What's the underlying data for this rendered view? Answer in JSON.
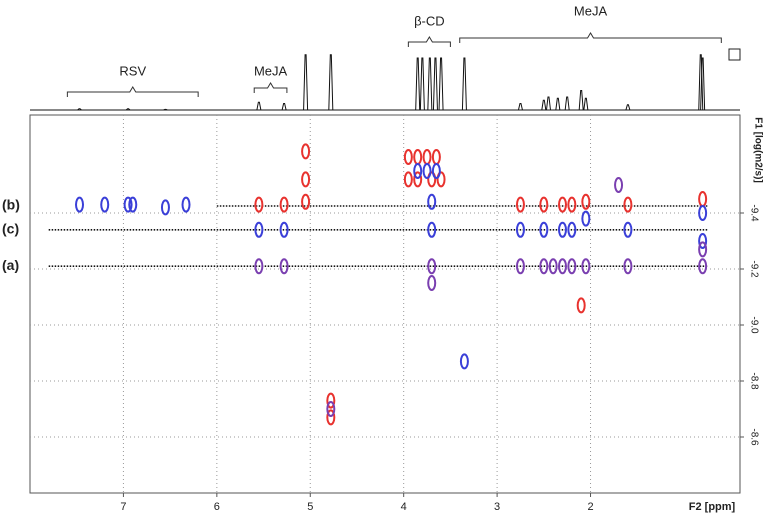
{
  "chart_data": {
    "type": "dosy",
    "xlabel": "F2 [ppm]",
    "ylabel": "F1 [log(m2/s)]",
    "xlim": [
      8.0,
      0.4
    ],
    "xticks": [
      7,
      6,
      5,
      4,
      3,
      2
    ],
    "ylim": [
      -9.75,
      -8.4
    ],
    "yticks": [
      {
        "value": -9.4,
        "label": "-9.4"
      },
      {
        "value": -9.2,
        "label": "-9.2"
      },
      {
        "value": -9,
        "label": "-9.0"
      },
      {
        "value": -8.8,
        "label": "-8.8"
      },
      {
        "value": -8.6,
        "label": "-8.6"
      }
    ],
    "grid": true,
    "spectrum": {
      "color": "#111111",
      "x": [
        7.47,
        6.95,
        6.55,
        5.55,
        5.28,
        5.05,
        4.78,
        3.85,
        3.8,
        3.72,
        3.66,
        3.6,
        3.35,
        2.75,
        2.5,
        2.45,
        2.35,
        2.25,
        2.1,
        2.05,
        1.6,
        0.82,
        0.8
      ],
      "values": [
        2,
        2,
        1,
        12,
        10,
        85,
        85,
        80,
        80,
        80,
        80,
        80,
        80,
        10,
        15,
        20,
        18,
        20,
        30,
        18,
        8,
        85,
        80
      ]
    },
    "regions": [
      {
        "label": "RSV",
        "from": 7.6,
        "to": 6.2
      },
      {
        "label": "MeJA",
        "from": 5.6,
        "to": 5.25
      },
      {
        "label": "β-CD",
        "from": 3.95,
        "to": 3.5
      },
      {
        "label": "MeJA",
        "from": 3.4,
        "to": 0.6
      }
    ],
    "reference_lines": [
      {
        "label": "(b)",
        "value": -9.425,
        "from": 6.0,
        "to": 0.75
      },
      {
        "label": "(c)",
        "value": -9.34,
        "from": 7.8,
        "to": 0.75
      },
      {
        "label": "(a)",
        "value": -9.21,
        "from": 7.8,
        "to": 0.75
      }
    ],
    "series": [
      {
        "color": "#e8322e",
        "x": [
          5.55,
          5.28,
          5.05,
          5.05,
          5.05,
          4.78,
          4.78,
          3.95,
          3.85,
          3.75,
          3.65,
          3.95,
          3.85,
          3.7,
          3.6,
          2.75,
          2.5,
          2.3,
          2.2,
          2.05,
          1.6,
          0.8,
          2.1
        ],
        "values": [
          -9.43,
          -9.43,
          -9.62,
          -9.52,
          -9.44,
          -8.73,
          -8.67,
          -9.6,
          -9.6,
          -9.6,
          -9.6,
          -9.52,
          -9.52,
          -9.52,
          -9.52,
          -9.43,
          -9.43,
          -9.43,
          -9.43,
          -9.44,
          -9.43,
          -9.45,
          -9.07
        ]
      },
      {
        "color": "#3a3fd8",
        "x": [
          7.47,
          7.2,
          6.95,
          6.9,
          6.55,
          6.33,
          5.55,
          5.28,
          3.85,
          3.75,
          3.65,
          3.7,
          3.7,
          3.35,
          2.75,
          2.5,
          2.3,
          2.2,
          2.05,
          1.6,
          0.8,
          0.8
        ],
        "values": [
          -9.43,
          -9.43,
          -9.43,
          -9.43,
          -9.42,
          -9.43,
          -9.34,
          -9.34,
          -9.55,
          -9.55,
          -9.55,
          -9.44,
          -9.34,
          -8.87,
          -9.34,
          -9.34,
          -9.34,
          -9.34,
          -9.38,
          -9.34,
          -9.4,
          -9.3
        ]
      },
      {
        "color": "#7a3fb0",
        "x": [
          5.55,
          5.28,
          4.78,
          3.7,
          3.7,
          2.75,
          2.5,
          2.4,
          2.3,
          2.2,
          2.05,
          1.6,
          0.8,
          0.8,
          1.7
        ],
        "values": [
          -9.21,
          -9.21,
          -8.7,
          -9.21,
          -9.15,
          -9.21,
          -9.21,
          -9.21,
          -9.21,
          -9.21,
          -9.21,
          -9.21,
          -9.21,
          -9.27,
          -9.5
        ]
      }
    ]
  }
}
